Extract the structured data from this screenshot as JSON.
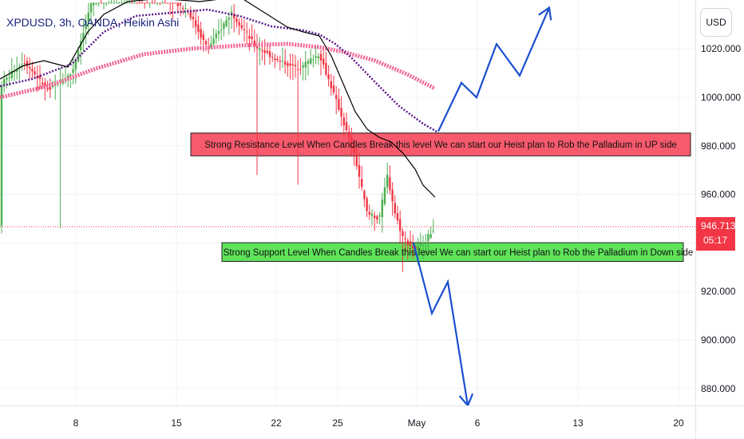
{
  "header": {
    "symbol": "XPDUSD, 3h, OANDA, Heikin Ashi"
  },
  "axis_controls": {
    "currency": "USD"
  },
  "last_price": {
    "value": "946.713",
    "countdown": "05:17"
  },
  "colors": {
    "up_candle": "#4caf50",
    "down_candle": "#f23645",
    "wick": "#8a8a8a",
    "black_line": "#000000",
    "purple_ma": "#5b1a8e",
    "pink_ma": "#f06292",
    "arrow": "#1a4fd0",
    "resistance_fill": "#f75a6c",
    "support_fill": "#5ee35a",
    "price_line": "#f23645"
  },
  "chart_data": {
    "type": "candlestick",
    "ylim": [
      872,
      1037
    ],
    "y_ticks": [
      "1020.000",
      "1000.000",
      "980.000",
      "960.000",
      "940.000",
      "920.000",
      "900.000",
      "880.000"
    ],
    "x_ticks": [
      "8",
      "15",
      "22",
      "25",
      "May",
      "6",
      "13",
      "20"
    ],
    "last_price": 946.713,
    "resistance": {
      "low": 975.9,
      "high": 985.3,
      "label": "Strong Resistance Level When Candles Break this level We can start our Heist plan to Rob the Palladium in UP side"
    },
    "support": {
      "low": 932.4,
      "high": 940.1,
      "label": "Strong Support Level When Candles Break this level We can start our Heist plan to Rob the Palladium in Down side"
    },
    "up_arrow_path": [
      [
        549,
        986
      ],
      [
        578,
        1006
      ],
      [
        597,
        1000
      ],
      [
        622,
        1022
      ],
      [
        651,
        1009
      ],
      [
        688,
        1037
      ]
    ],
    "down_arrow_path": [
      [
        518,
        940
      ],
      [
        541,
        911
      ],
      [
        561,
        924
      ],
      [
        586,
        873
      ]
    ]
  }
}
